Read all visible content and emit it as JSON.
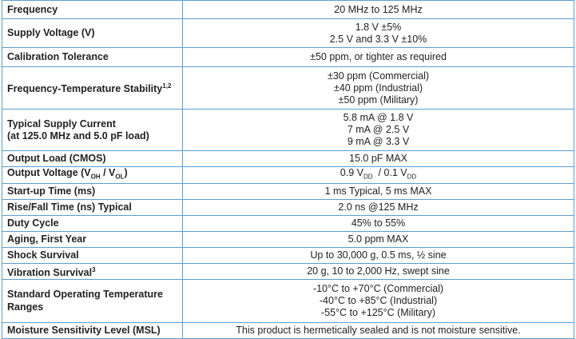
{
  "rows": [
    {
      "label": "Frequency",
      "values": [
        "20 MHz to 125 MHz"
      ]
    },
    {
      "label": "Supply Voltage (V)",
      "values": [
        "1.8 V ±5%",
        "2.5 V and 3.3 V ±10%"
      ]
    },
    {
      "label": "Calibration Tolerance",
      "values": [
        "±50 ppm, or tighter as required"
      ]
    },
    {
      "label": "Frequency-Temperature Stability",
      "sup": "1,2",
      "values": [
        "±30 ppm (Commercial)",
        "±40 ppm (Industrial)",
        "±50 ppm (Military)"
      ]
    },
    {
      "label": "Typical Supply Current",
      "label2": "(at 125.0 MHz and 5.0 pF load)",
      "values": [
        "5.8 mA @ 1.8 V",
        "7 mA @ 2.5 V",
        "9 mA @ 3.3 V"
      ]
    },
    {
      "label": "Output Load (CMOS)",
      "values": [
        "15.0 pF MAX"
      ]
    },
    {
      "label": "Output Voltage",
      "values": [
        "0.9 V / 0.1 V"
      ]
    },
    {
      "label": "Start-up Time (ms)",
      "values": [
        "1 ms Typical, 5 ms MAX"
      ]
    },
    {
      "label": "Rise/Fall Time (ns) Typical",
      "values": [
        "2.0 ns @125 MHz"
      ]
    },
    {
      "label": "Duty Cycle",
      "values": [
        "45% to 55%"
      ]
    },
    {
      "label": "Aging, First Year",
      "values": [
        "5.0 ppm MAX"
      ]
    },
    {
      "label": "Shock Survival",
      "values": [
        "Up to 30,000 g, 0.5 ms, ½ sine"
      ]
    },
    {
      "label": "Vibration Survival",
      "sup": "3",
      "values": [
        "20 g, 10 to 2,000 Hz, swept sine"
      ]
    },
    {
      "label": "Standard Operating Temperature Ranges",
      "values": [
        "-10°C to +70°C (Commercial)",
        "-40°C to +85°C (Industrial)",
        "-55°C to +125°C (Military)"
      ]
    },
    {
      "label": "Moisture Sensitivity Level (MSL)",
      "values": [
        "This product is hermetically sealed and is not moisture sensitive."
      ]
    }
  ],
  "output_voltage": {
    "pre": "Output Voltage (V",
    "oh": "OH",
    "mid": " / V",
    "ol": "OL",
    "post": ")",
    "v1": "0.9 V",
    "dd": "DD",
    "sep": "  / 0.1 V"
  }
}
